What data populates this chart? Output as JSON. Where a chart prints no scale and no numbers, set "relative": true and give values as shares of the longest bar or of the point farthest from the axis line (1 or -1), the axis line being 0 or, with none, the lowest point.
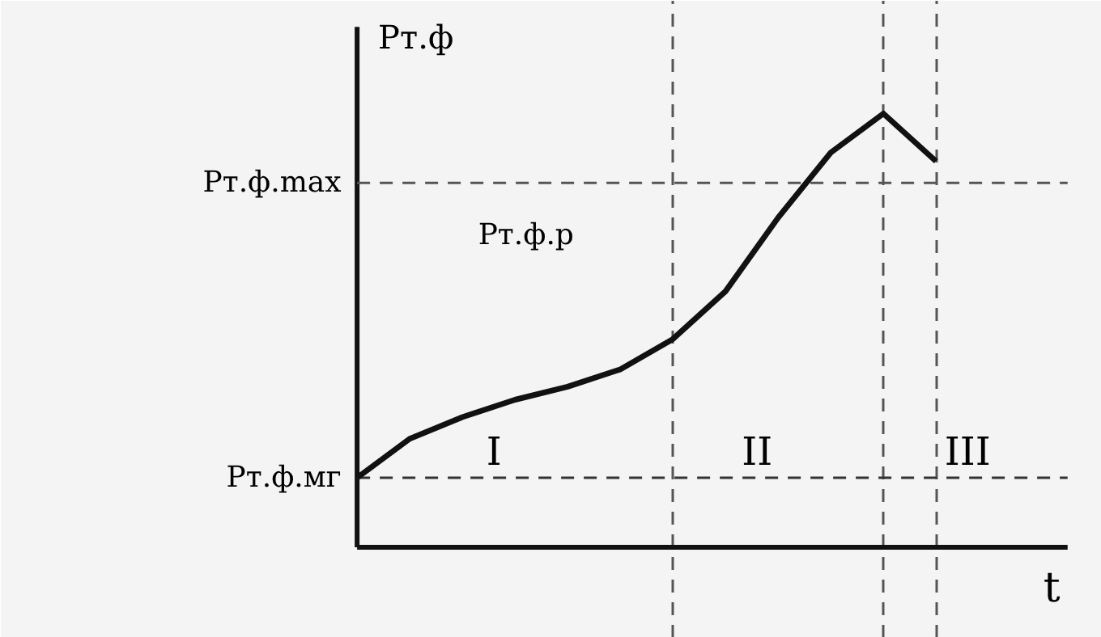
{
  "chart_data": {
    "type": "line",
    "relative": true,
    "categories": [
      null,
      null,
      null,
      null,
      null,
      null,
      null,
      null,
      null,
      null,
      null,
      null
    ],
    "series": [
      {
        "color": "#111111",
        "values": [
          0.16,
          0.25,
          0.3,
          0.34,
          0.37,
          0.41,
          0.48,
          0.59,
          0.76,
          0.91,
          1.0,
          0.89
        ]
      }
    ],
    "xlabel": "t",
    "ylabel": "Pт.ф",
    "ref_lines": [
      {
        "axis": "y",
        "value": 0.84,
        "label": "Pт.ф.max",
        "line_style": "dashed",
        "color": "#555555"
      },
      {
        "axis": "y",
        "value": 0.16,
        "label": "Pт.ф.мг",
        "line_style": "dashed",
        "color": "#333333"
      }
    ],
    "annotations": [
      "Pт.ф.р",
      "I",
      "II",
      "III"
    ],
    "grid": "x"
  }
}
